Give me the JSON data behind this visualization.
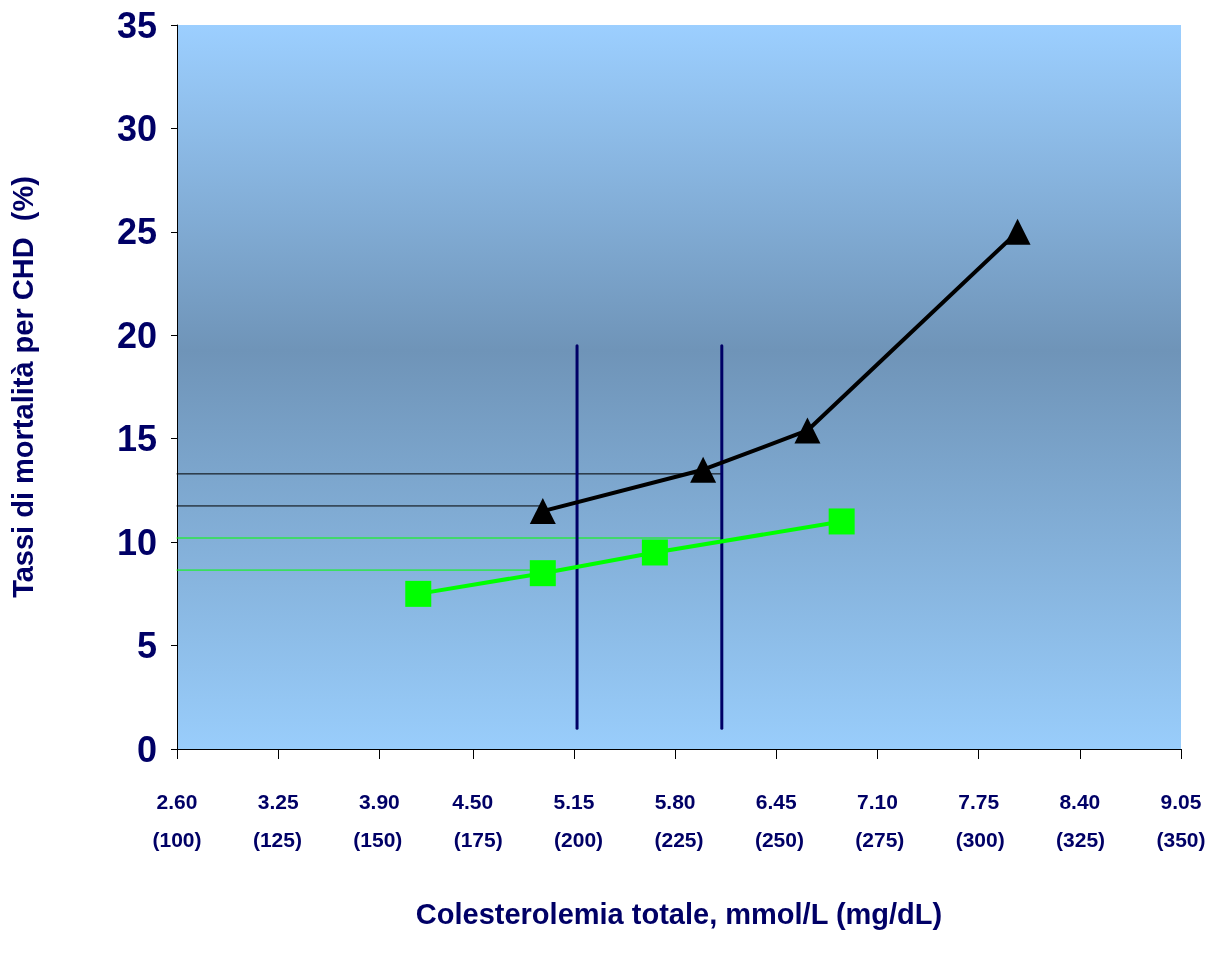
{
  "chart_data": {
    "type": "line",
    "xlabel": "Colesterolemia totale, mmol/L (mg/dL)",
    "ylabel": "Tassi di mortalità per CHD  (%)",
    "xlim": [
      2.6,
      9.05
    ],
    "xticks": [
      {
        "value": 2.6,
        "label": "2.60"
      },
      3.25,
      {
        "value": 3.9,
        "label": "3.90"
      },
      {
        "value": 4.5,
        "label": "4.50"
      },
      5.15,
      {
        "value": 5.8,
        "label": "5.80"
      },
      6.45,
      {
        "value": 7.1,
        "label": "7.10"
      },
      7.75,
      {
        "value": 8.4,
        "label": "8.40"
      },
      9.05
    ],
    "x2lim": [
      100,
      350
    ],
    "x2ticks": [
      {
        "value": 100,
        "label": "(100)"
      },
      {
        "value": 125,
        "label": "(125)"
      },
      {
        "value": 150,
        "label": "(150)"
      },
      {
        "value": 175,
        "label": "(175)"
      },
      {
        "value": 200,
        "label": "(200)"
      },
      {
        "value": 225,
        "label": "(225)"
      },
      {
        "value": 250,
        "label": "(250)"
      },
      {
        "value": 275,
        "label": "(275)"
      },
      {
        "value": 300,
        "label": "(300)"
      },
      {
        "value": 325,
        "label": "(325)"
      },
      {
        "value": 350,
        "label": "(350)"
      }
    ],
    "ylim": [
      0,
      35
    ],
    "yticks": [
      0,
      5,
      10,
      15,
      20,
      25,
      30,
      35
    ],
    "grid": false,
    "line_style": "solid",
    "series": [
      {
        "color": "#000000",
        "marker": "triangle",
        "x": [
          4.95,
          5.98,
          6.65,
          8.0
        ],
        "values": [
          11.5,
          13.5,
          15.4,
          25
        ]
      },
      {
        "color": "#00ff00",
        "marker": "square",
        "x": [
          4.15,
          4.95,
          5.67,
          6.87
        ],
        "values": [
          7.5,
          8.5,
          9.5,
          11
        ]
      },
      {
        "color": "#000000",
        "marker": "none",
        "x": [
          2.6,
          6.1
        ],
        "values": [
          13.3,
          13.3
        ]
      },
      {
        "color": "#000000",
        "marker": "none",
        "x": [
          2.6,
          4.95
        ],
        "values": [
          11.75,
          11.75
        ]
      },
      {
        "color": "#00ff00",
        "marker": "none",
        "x": [
          2.6,
          6.1
        ],
        "values": [
          10.2,
          10.2
        ]
      },
      {
        "color": "#00ff00",
        "marker": "none",
        "x": [
          2.6,
          4.95
        ],
        "values": [
          8.65,
          8.65
        ]
      },
      {
        "color": "#000066",
        "marker": "none",
        "x": [
          5.17,
          5.17
        ],
        "values": [
          1,
          19.5
        ]
      },
      {
        "color": "#000066",
        "marker": "none",
        "x": [
          6.1,
          6.1
        ],
        "values": [
          1,
          19.5
        ]
      }
    ]
  }
}
